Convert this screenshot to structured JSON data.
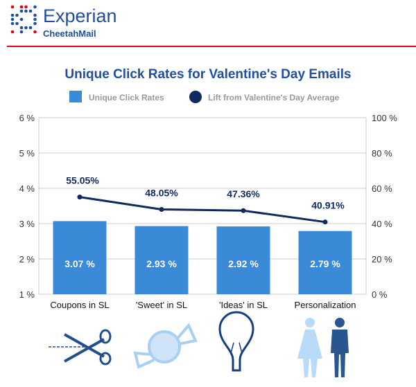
{
  "header": {
    "brand": "Experian",
    "sub_brand": "CheetahMail"
  },
  "chart_data": {
    "type": "bar+line",
    "title": "Unique Click Rates for Valentine's Day Emails",
    "categories": [
      "Coupons in SL",
      "'Sweet' in SL",
      "'Ideas' in SL",
      "Personalization"
    ],
    "series": [
      {
        "name": "Unique Click Rates",
        "type": "bar",
        "axis": "left",
        "values": [
          3.07,
          2.93,
          2.92,
          2.79
        ],
        "labels": [
          "3.07 %",
          "2.93 %",
          "2.92 %",
          "2.79 %"
        ],
        "color": "#3a8ad8"
      },
      {
        "name": "Lift from Valentine's Day Average",
        "type": "line",
        "axis": "right",
        "values": [
          55.05,
          48.05,
          47.36,
          40.91
        ],
        "labels": [
          "55.05%",
          "48.05%",
          "47.36%",
          "40.91%"
        ],
        "color": "#0f2a5e"
      }
    ],
    "left_axis": {
      "range": [
        1,
        6
      ],
      "ticks": [
        "1 %",
        "2 %",
        "3 %",
        "4 %",
        "5 %",
        "6 %"
      ]
    },
    "right_axis": {
      "range": [
        0,
        100
      ],
      "ticks": [
        "0 %",
        "20 %",
        "40 %",
        "60 %",
        "80 %",
        "100 %"
      ]
    },
    "grid": true,
    "legend": "top",
    "category_icons": [
      "scissors-icon",
      "candy-icon",
      "lightbulb-icon",
      "people-icon"
    ]
  }
}
